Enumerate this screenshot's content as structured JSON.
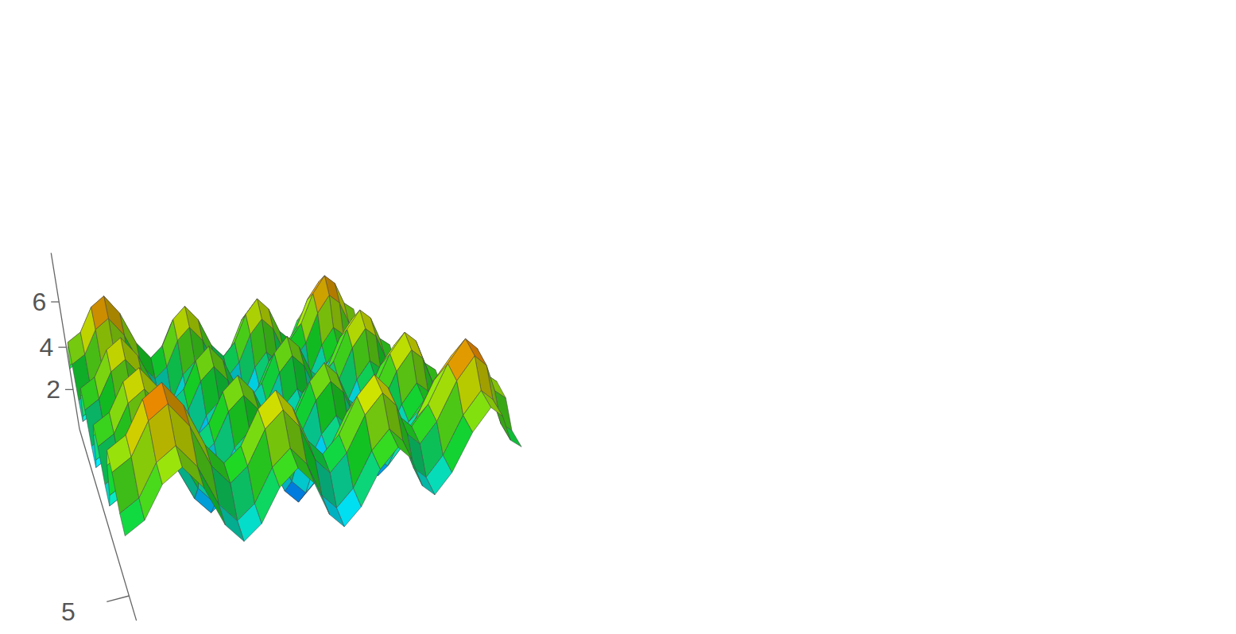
{
  "chart_data": {
    "type": "surface",
    "x": [
      -6,
      -5.5,
      -5,
      -4.5,
      -4,
      -3.5,
      -3,
      -2.5,
      -2,
      -1.5,
      -1,
      -0.5,
      0,
      0.5,
      1,
      1.5,
      2,
      2.5,
      3,
      3.5,
      4,
      4.5,
      5,
      5.5,
      6
    ],
    "y": [
      -6,
      -5.5,
      -5,
      -4.5,
      -4,
      -3.5,
      -3,
      -2.5,
      -2,
      -1.5,
      -1,
      -0.5,
      0,
      0.5,
      1,
      1.5,
      2,
      2.5,
      3,
      3.5,
      4,
      4.5,
      5,
      5.5,
      6
    ],
    "z": [
      [
        3.0,
        3.36,
        4.34,
        4.74,
        3.97,
        2.61,
        1.88,
        2.36,
        3.47,
        3.99,
        3.34,
        2.11,
        1.5,
        2.11,
        3.34,
        3.99,
        3.47,
        2.36,
        1.88,
        2.61,
        3.97,
        4.74,
        4.34,
        3.36,
        3.0
      ],
      [
        3.36,
        3.72,
        4.7,
        5.1,
        4.33,
        2.97,
        2.24,
        2.72,
        3.83,
        4.35,
        3.7,
        2.47,
        1.86,
        2.47,
        3.7,
        4.35,
        3.83,
        2.72,
        2.24,
        2.97,
        4.33,
        5.1,
        4.7,
        3.72,
        3.36
      ],
      [
        4.34,
        4.7,
        5.68,
        6.08,
        5.31,
        3.95,
        3.22,
        3.7,
        4.81,
        5.33,
        4.68,
        3.45,
        2.84,
        3.45,
        4.68,
        5.33,
        4.81,
        3.7,
        3.22,
        3.95,
        5.31,
        6.08,
        5.68,
        4.7,
        4.34
      ],
      [
        4.74,
        5.1,
        6.08,
        6.48,
        5.71,
        4.35,
        3.62,
        4.1,
        5.21,
        5.73,
        5.08,
        3.85,
        3.24,
        3.85,
        5.08,
        5.73,
        5.21,
        4.1,
        3.62,
        4.35,
        5.71,
        6.48,
        6.08,
        5.1,
        4.74
      ],
      [
        3.97,
        4.33,
        5.31,
        5.71,
        4.94,
        3.58,
        2.85,
        3.33,
        4.44,
        4.96,
        4.31,
        3.08,
        2.47,
        3.08,
        4.31,
        4.96,
        4.44,
        3.33,
        2.85,
        3.58,
        4.94,
        5.71,
        5.31,
        4.33,
        3.97
      ],
      [
        2.61,
        2.97,
        3.95,
        4.35,
        3.58,
        2.22,
        1.49,
        1.97,
        3.08,
        3.6,
        2.95,
        1.72,
        1.11,
        1.72,
        2.95,
        3.6,
        3.08,
        1.97,
        1.49,
        2.22,
        3.58,
        4.35,
        3.95,
        2.97,
        2.61
      ],
      [
        1.88,
        2.24,
        3.22,
        3.62,
        2.85,
        1.49,
        0.76,
        1.24,
        2.35,
        2.87,
        2.22,
        0.99,
        0.38,
        0.99,
        2.22,
        2.87,
        2.35,
        1.24,
        0.76,
        1.49,
        2.85,
        3.62,
        3.22,
        2.24,
        1.88
      ],
      [
        2.36,
        2.72,
        3.7,
        4.1,
        3.33,
        1.97,
        1.24,
        1.72,
        2.83,
        3.35,
        2.7,
        1.47,
        0.86,
        1.47,
        2.7,
        3.35,
        2.83,
        1.72,
        1.24,
        1.97,
        3.33,
        4.1,
        3.7,
        2.72,
        2.36
      ],
      [
        3.47,
        3.83,
        4.81,
        5.21,
        4.44,
        3.08,
        2.35,
        2.83,
        3.94,
        4.46,
        3.81,
        2.58,
        1.97,
        2.58,
        3.81,
        4.46,
        3.94,
        2.83,
        2.35,
        3.08,
        4.44,
        5.21,
        4.81,
        3.83,
        3.47
      ],
      [
        3.99,
        4.35,
        5.33,
        5.73,
        4.96,
        3.6,
        2.87,
        3.35,
        4.46,
        4.98,
        4.33,
        3.1,
        2.49,
        3.1,
        4.33,
        4.98,
        4.46,
        3.35,
        2.87,
        3.6,
        4.96,
        5.73,
        5.33,
        4.35,
        3.99
      ],
      [
        3.34,
        3.7,
        4.68,
        5.08,
        4.31,
        2.95,
        2.22,
        2.7,
        3.81,
        4.33,
        3.68,
        2.45,
        1.84,
        2.45,
        3.68,
        4.33,
        3.81,
        2.7,
        2.22,
        2.95,
        4.31,
        5.08,
        4.68,
        3.7,
        3.34
      ],
      [
        2.11,
        2.47,
        3.45,
        3.85,
        3.08,
        1.72,
        0.99,
        1.47,
        2.58,
        3.1,
        2.45,
        1.22,
        0.61,
        1.22,
        2.45,
        3.1,
        2.58,
        1.47,
        0.99,
        1.72,
        3.08,
        3.85,
        3.45,
        2.47,
        2.11
      ],
      [
        1.5,
        1.86,
        2.84,
        3.24,
        2.47,
        1.11,
        0.38,
        0.86,
        1.97,
        2.49,
        1.84,
        0.61,
        0,
        0.61,
        1.84,
        2.49,
        1.97,
        0.86,
        0.38,
        1.11,
        2.47,
        3.24,
        2.84,
        1.86,
        1.5
      ],
      [
        2.11,
        2.47,
        3.45,
        3.85,
        3.08,
        1.72,
        0.99,
        1.47,
        2.58,
        3.1,
        2.45,
        1.22,
        0.61,
        1.22,
        2.45,
        3.1,
        2.58,
        1.47,
        0.99,
        1.72,
        3.08,
        3.85,
        3.45,
        2.47,
        2.11
      ],
      [
        3.34,
        3.7,
        4.68,
        5.08,
        4.31,
        2.95,
        2.22,
        2.7,
        3.81,
        4.33,
        3.68,
        2.45,
        1.84,
        2.45,
        3.68,
        4.33,
        3.81,
        2.7,
        2.22,
        2.95,
        4.31,
        5.08,
        4.68,
        3.7,
        3.34
      ],
      [
        3.99,
        4.35,
        5.33,
        5.73,
        4.96,
        3.6,
        2.87,
        3.35,
        4.46,
        4.98,
        4.33,
        3.1,
        2.49,
        3.1,
        4.33,
        4.98,
        4.46,
        3.35,
        2.87,
        3.6,
        4.96,
        5.73,
        5.33,
        4.35,
        3.99
      ],
      [
        3.47,
        3.83,
        4.81,
        5.21,
        4.44,
        3.08,
        2.35,
        2.83,
        3.94,
        4.46,
        3.81,
        2.58,
        1.97,
        2.58,
        3.81,
        4.46,
        3.94,
        2.83,
        2.35,
        3.08,
        4.44,
        5.21,
        4.81,
        3.83,
        3.47
      ],
      [
        2.36,
        2.72,
        3.7,
        4.1,
        3.33,
        1.97,
        1.24,
        1.72,
        2.83,
        3.35,
        2.7,
        1.47,
        0.86,
        1.47,
        2.7,
        3.35,
        2.83,
        1.72,
        1.24,
        1.97,
        3.33,
        4.1,
        3.7,
        2.72,
        2.36
      ],
      [
        1.88,
        2.24,
        3.22,
        3.62,
        2.85,
        1.49,
        0.76,
        1.24,
        2.35,
        2.87,
        2.22,
        0.99,
        0.38,
        0.99,
        2.22,
        2.87,
        2.35,
        1.24,
        0.76,
        1.49,
        2.85,
        3.62,
        3.22,
        2.24,
        1.88
      ],
      [
        2.61,
        2.97,
        3.95,
        4.35,
        3.58,
        2.22,
        1.49,
        1.97,
        3.08,
        3.6,
        2.95,
        1.72,
        1.11,
        1.72,
        2.95,
        3.6,
        3.08,
        1.97,
        1.49,
        2.22,
        3.58,
        4.35,
        3.95,
        2.97,
        2.61
      ],
      [
        3.97,
        4.33,
        5.31,
        5.71,
        4.94,
        3.58,
        2.85,
        3.33,
        4.44,
        4.96,
        4.31,
        3.08,
        2.47,
        3.08,
        4.31,
        4.96,
        4.44,
        3.33,
        2.85,
        3.58,
        4.94,
        5.71,
        5.31,
        4.33,
        3.97
      ],
      [
        4.74,
        5.1,
        6.08,
        6.48,
        5.71,
        4.35,
        3.62,
        4.1,
        5.21,
        5.73,
        5.08,
        3.85,
        3.24,
        3.85,
        5.08,
        5.73,
        5.21,
        4.1,
        3.62,
        4.35,
        5.71,
        6.48,
        6.08,
        5.1,
        4.74
      ],
      [
        4.34,
        4.7,
        5.68,
        6.08,
        5.31,
        3.95,
        3.22,
        3.7,
        4.81,
        5.33,
        4.68,
        3.45,
        2.84,
        3.45,
        4.68,
        5.33,
        4.81,
        3.7,
        3.22,
        3.95,
        5.31,
        6.08,
        5.68,
        4.7,
        4.34
      ],
      [
        3.36,
        3.72,
        4.7,
        5.1,
        4.33,
        2.97,
        2.24,
        2.72,
        3.83,
        4.35,
        3.7,
        2.47,
        1.86,
        2.47,
        3.7,
        4.35,
        3.83,
        2.72,
        2.24,
        2.97,
        4.33,
        5.1,
        4.7,
        3.72,
        3.36
      ],
      [
        3.0,
        3.36,
        4.34,
        4.74,
        3.97,
        2.61,
        1.88,
        2.36,
        3.47,
        3.99,
        3.34,
        2.11,
        1.5,
        2.11,
        3.34,
        3.99,
        3.47,
        2.36,
        1.88,
        2.61,
        3.97,
        4.74,
        4.34,
        3.36,
        3.0
      ]
    ],
    "xlim": [
      -6,
      6
    ],
    "ylim": [
      -6,
      6
    ],
    "zlim": [
      0,
      8
    ],
    "xticks": [
      5
    ],
    "zticks": [
      2,
      4,
      6
    ]
  }
}
